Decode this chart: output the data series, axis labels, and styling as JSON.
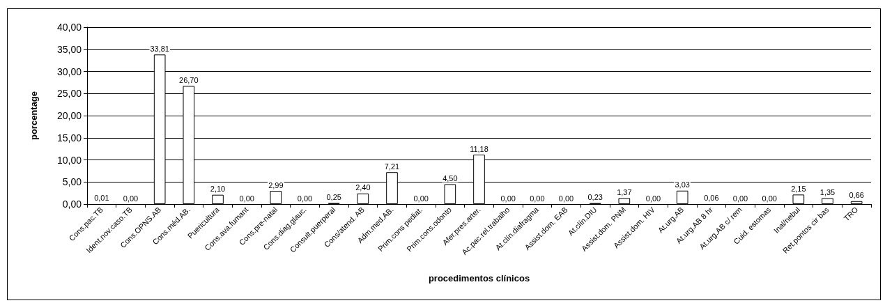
{
  "chart_data": {
    "type": "bar",
    "xlabel": "procedimentos clínicos",
    "ylabel": "porcentage",
    "categories": [
      "Cons.pac.TB",
      "Ident.nov.caso.TB",
      "Cons.OPNS.AB",
      "Cons.méd.AB.",
      "Puericultura",
      "Cons.ava.fumant",
      "Cons.pre-natal",
      "Cons.diag.glauc.",
      "Consult.puerperal",
      "Cons/atend. AB",
      "Adm.med.AB.",
      "Prim.cons pediat.",
      "Prim.cons.odonto",
      "Afer.pres.arter.",
      "Ac.pac.rel.trabalho",
      "At.clín.diafragma",
      "Assist.dom. EAB",
      "At.clín.DIU",
      "Assist.dom. PNM",
      "Assist.dom. HIV",
      "At.urg.AB",
      "At.urg.AB 8 hr",
      "At.urg.AB c/ rem",
      "Cuid. estomas",
      "Inal/nebul",
      "Ret.pontos cir bas",
      "TRO"
    ],
    "values": [
      0.01,
      0.0,
      33.81,
      26.7,
      2.1,
      0.0,
      2.99,
      0.0,
      0.25,
      2.4,
      7.21,
      0.0,
      4.5,
      11.18,
      0.0,
      0.0,
      0.0,
      0.23,
      1.37,
      0.0,
      3.03,
      0.06,
      0.0,
      0.0,
      2.15,
      1.35,
      0.66
    ],
    "value_labels": [
      "0,01",
      "0,00",
      "33,81",
      "26,70",
      "2,10",
      "0,00",
      "2,99",
      "0,00",
      "0,25",
      "2,40",
      "7,21",
      "0,00",
      "4,50",
      "11,18",
      "0,00",
      "0,00",
      "0,00",
      "0,23",
      "1,37",
      "0,00",
      "3,03",
      "0,06",
      "0,00",
      "0,00",
      "2,15",
      "1,35",
      "0,66"
    ],
    "color": "#ffffff",
    "ylim": [
      0,
      40
    ],
    "yticks": [
      {
        "value": 0,
        "label": "0,00"
      },
      {
        "value": 5,
        "label": "5,00"
      },
      {
        "value": 10,
        "label": "10,00"
      },
      {
        "value": 15,
        "label": "15,00"
      },
      {
        "value": 20,
        "label": "20,00"
      },
      {
        "value": 25,
        "label": "25,00"
      },
      {
        "value": 30,
        "label": "30,00"
      },
      {
        "value": 35,
        "label": "35,00"
      },
      {
        "value": 40,
        "label": "40,00"
      }
    ],
    "grid": "y"
  }
}
